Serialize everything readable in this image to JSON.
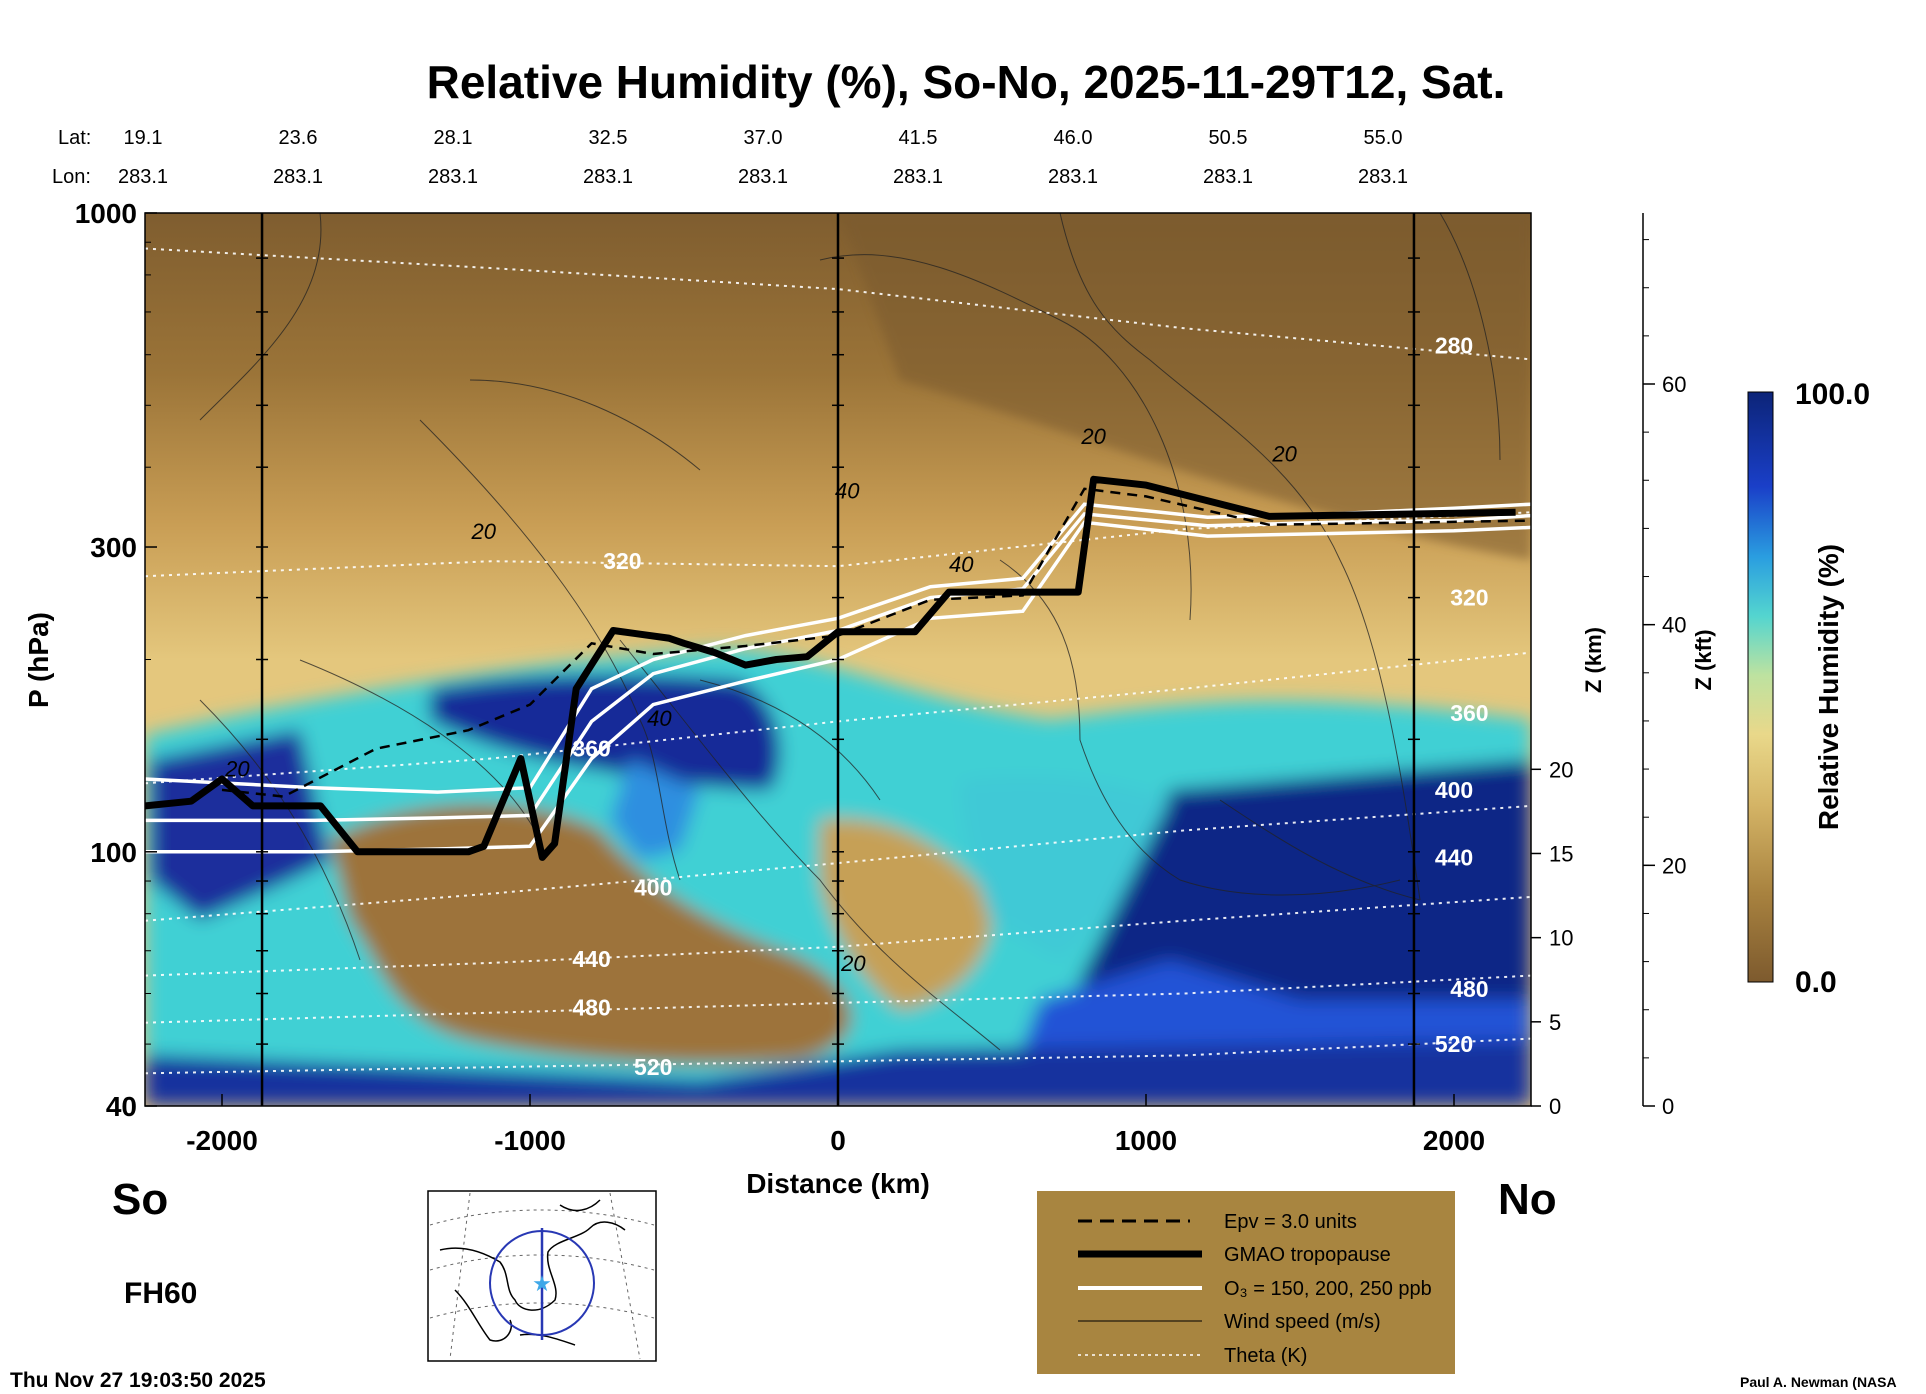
{
  "chart_data": {
    "type": "heatmap",
    "title": "Relative Humidity (%), So-No, 2025-11-29T12, Sat.",
    "xlabel": "Distance (km)",
    "ylabel": "P (hPa)",
    "y2label": "Z (km)",
    "y3label": "Z (kft)",
    "xlim": [
      -2250,
      2250
    ],
    "ylim": [
      1000,
      40
    ],
    "yscale": "log",
    "x_ticks": [
      "-2000",
      "-1000",
      "0",
      "1000",
      "2000"
    ],
    "x_tick_values": [
      -2000,
      -1000,
      0,
      1000,
      2000
    ],
    "y_ticks": [
      "40",
      "100",
      "300",
      "1000"
    ],
    "y_tick_values": [
      40,
      100,
      300,
      1000
    ],
    "z_km_ticks": [
      "0",
      "5",
      "10",
      "15",
      "20"
    ],
    "z_kft_ticks": [
      "0",
      "20",
      "40",
      "60"
    ],
    "lat_label": "Lat:",
    "lon_label": "Lon:",
    "lat_values": [
      "19.1",
      "23.6",
      "28.1",
      "32.5",
      "37.0",
      "41.5",
      "46.0",
      "50.5",
      "55.0"
    ],
    "lon_values": [
      "283.1",
      "283.1",
      "283.1",
      "283.1",
      "283.1",
      "283.1",
      "283.1",
      "283.1",
      "283.1"
    ],
    "south_label": "So",
    "north_label": "No",
    "colorbar": {
      "label": "Relative Humidity (%)",
      "min_label": "0.0",
      "max_label": "100.0",
      "low_color": "#7d5a2e",
      "mid_color": "#e6c47a",
      "cyan_color": "#3fd2d8",
      "high_color": "#0d2a8c"
    },
    "vertical_lines_km": [
      -1870,
      0,
      1870
    ],
    "tropopause": {
      "name": "GMAO tropopause",
      "x": [
        -2250,
        -2100,
        -2000,
        -1900,
        -1680,
        -1560,
        -1200,
        -1150,
        -1030,
        -960,
        -920,
        -850,
        -730,
        -550,
        -500,
        -400,
        -300,
        -200,
        -100,
        0,
        250,
        360,
        780,
        830,
        1000,
        1400,
        2200
      ],
      "p": [
        118,
        120,
        130,
        118,
        118,
        100,
        100,
        102,
        140,
        98,
        103,
        180,
        222,
        216,
        212,
        205,
        196,
        200,
        202,
        221,
        221,
        255,
        255,
        383,
        375,
        335,
        340
      ]
    },
    "ozone_contours": {
      "name": "O₃ = 150, 200, 250 ppb",
      "x": [
        -2250,
        -1700,
        -1300,
        -1000,
        -800,
        -600,
        -300,
        0,
        300,
        600,
        800,
        1200,
        1600,
        2000,
        2250
      ],
      "p": [
        [
          100,
          100,
          101,
          102,
          140,
          170,
          185,
          200,
          232,
          238,
          328,
          312,
          315,
          318,
          322
        ],
        [
          112,
          112,
          113,
          114,
          160,
          190,
          208,
          222,
          250,
          258,
          338,
          324,
          328,
          330,
          336
        ],
        [
          130,
          126,
          124,
          126,
          180,
          200,
          218,
          232,
          260,
          268,
          350,
          334,
          338,
          345,
          350
        ]
      ]
    },
    "epv": {
      "name": "Epv = 3.0 units",
      "x": [
        -2000,
        -1800,
        -1500,
        -1200,
        -1000,
        -800,
        -600,
        -300,
        0,
        300,
        600,
        800,
        1000,
        1400,
        2250
      ],
      "p": [
        125,
        122,
        145,
        155,
        170,
        212,
        204,
        210,
        218,
        248,
        252,
        370,
        360,
        325,
        330
      ]
    },
    "theta": {
      "name": "Theta (K)",
      "levels": [
        "520",
        "480",
        "440",
        "400",
        "360",
        "320",
        "280"
      ],
      "x": [
        -2250,
        -1125,
        0,
        1125,
        2250
      ],
      "p": {
        "520": [
          45,
          46,
          47,
          48,
          51
        ],
        "480": [
          54,
          56,
          58,
          60,
          64
        ],
        "440": [
          64,
          67,
          71,
          78,
          85
        ],
        "400": [
          78,
          86,
          96,
          108,
          118
        ],
        "360": [
          128,
          140,
          160,
          180,
          205
        ],
        "320": [
          270,
          285,
          280,
          320,
          340
        ],
        "280": [
          880,
          820,
          760,
          660,
          590
        ]
      }
    },
    "wind_label_values": [
      "20",
      "20",
      "40",
      "20",
      "40",
      "40",
      "20",
      "20"
    ],
    "legend": {
      "epv": "Epv = 3.0 units",
      "trop": "GMAO tropopause",
      "o3": "O₃ = 150, 200, 250 ppb",
      "wind": "Wind speed (m/s)",
      "theta": "Theta (K)"
    },
    "forecast_hour": "FH60",
    "timestamp": "Thu Nov 27 19:03:50 2025",
    "credit": "Paul A. Newman (NASA"
  }
}
